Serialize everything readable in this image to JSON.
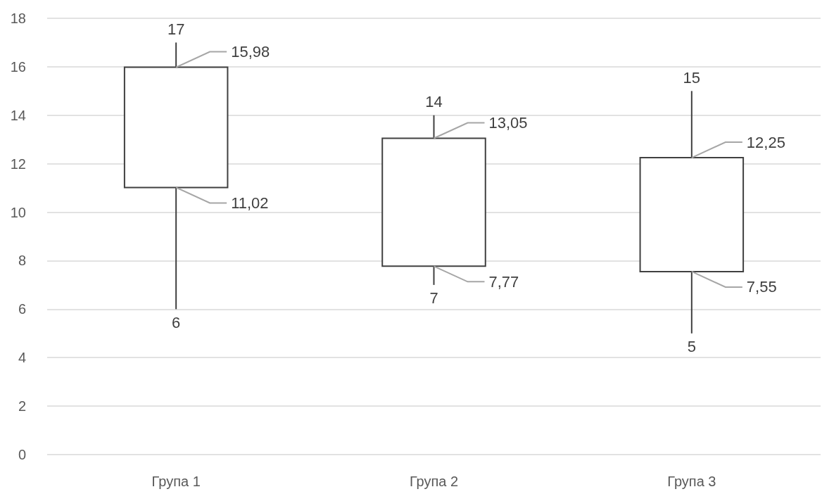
{
  "chart_data": {
    "type": "box",
    "categories": [
      "Група 1",
      "Група 2",
      "Група 3"
    ],
    "boxes": [
      {
        "low": 6,
        "q1": 11.02,
        "median": null,
        "q3": 15.98,
        "high": 17
      },
      {
        "low": 7,
        "q1": 7.77,
        "median": null,
        "q3": 13.05,
        "high": 14
      },
      {
        "low": 5,
        "q1": 7.55,
        "median": null,
        "q3": 12.25,
        "high": 15
      }
    ],
    "color": "#404040",
    "ylim": [
      0,
      18
    ],
    "yticks": [
      0,
      2,
      4,
      6,
      8,
      10,
      12,
      14,
      16,
      18
    ],
    "grid": "y",
    "annotations": [
      {
        "text": "17",
        "x": "Група 1",
        "y": 17
      },
      {
        "text": "15,98",
        "x": "Група 1",
        "y": 15.98
      },
      {
        "text": "11,02",
        "x": "Група 1",
        "y": 11.02
      },
      {
        "text": "6",
        "x": "Група 1",
        "y": 6
      },
      {
        "text": "14",
        "x": "Група 2",
        "y": 14
      },
      {
        "text": "13,05",
        "x": "Група 2",
        "y": 13.05
      },
      {
        "text": "7,77",
        "x": "Група 2",
        "y": 7.77
      },
      {
        "text": "7",
        "x": "Група 2",
        "y": 7
      },
      {
        "text": "15",
        "x": "Група 3",
        "y": 15
      },
      {
        "text": "12,25",
        "x": "Група 3",
        "y": 12.25
      },
      {
        "text": "7,55",
        "x": "Група 3",
        "y": 7.55
      },
      {
        "text": "5",
        "x": "Група 3",
        "y": 5
      }
    ]
  }
}
